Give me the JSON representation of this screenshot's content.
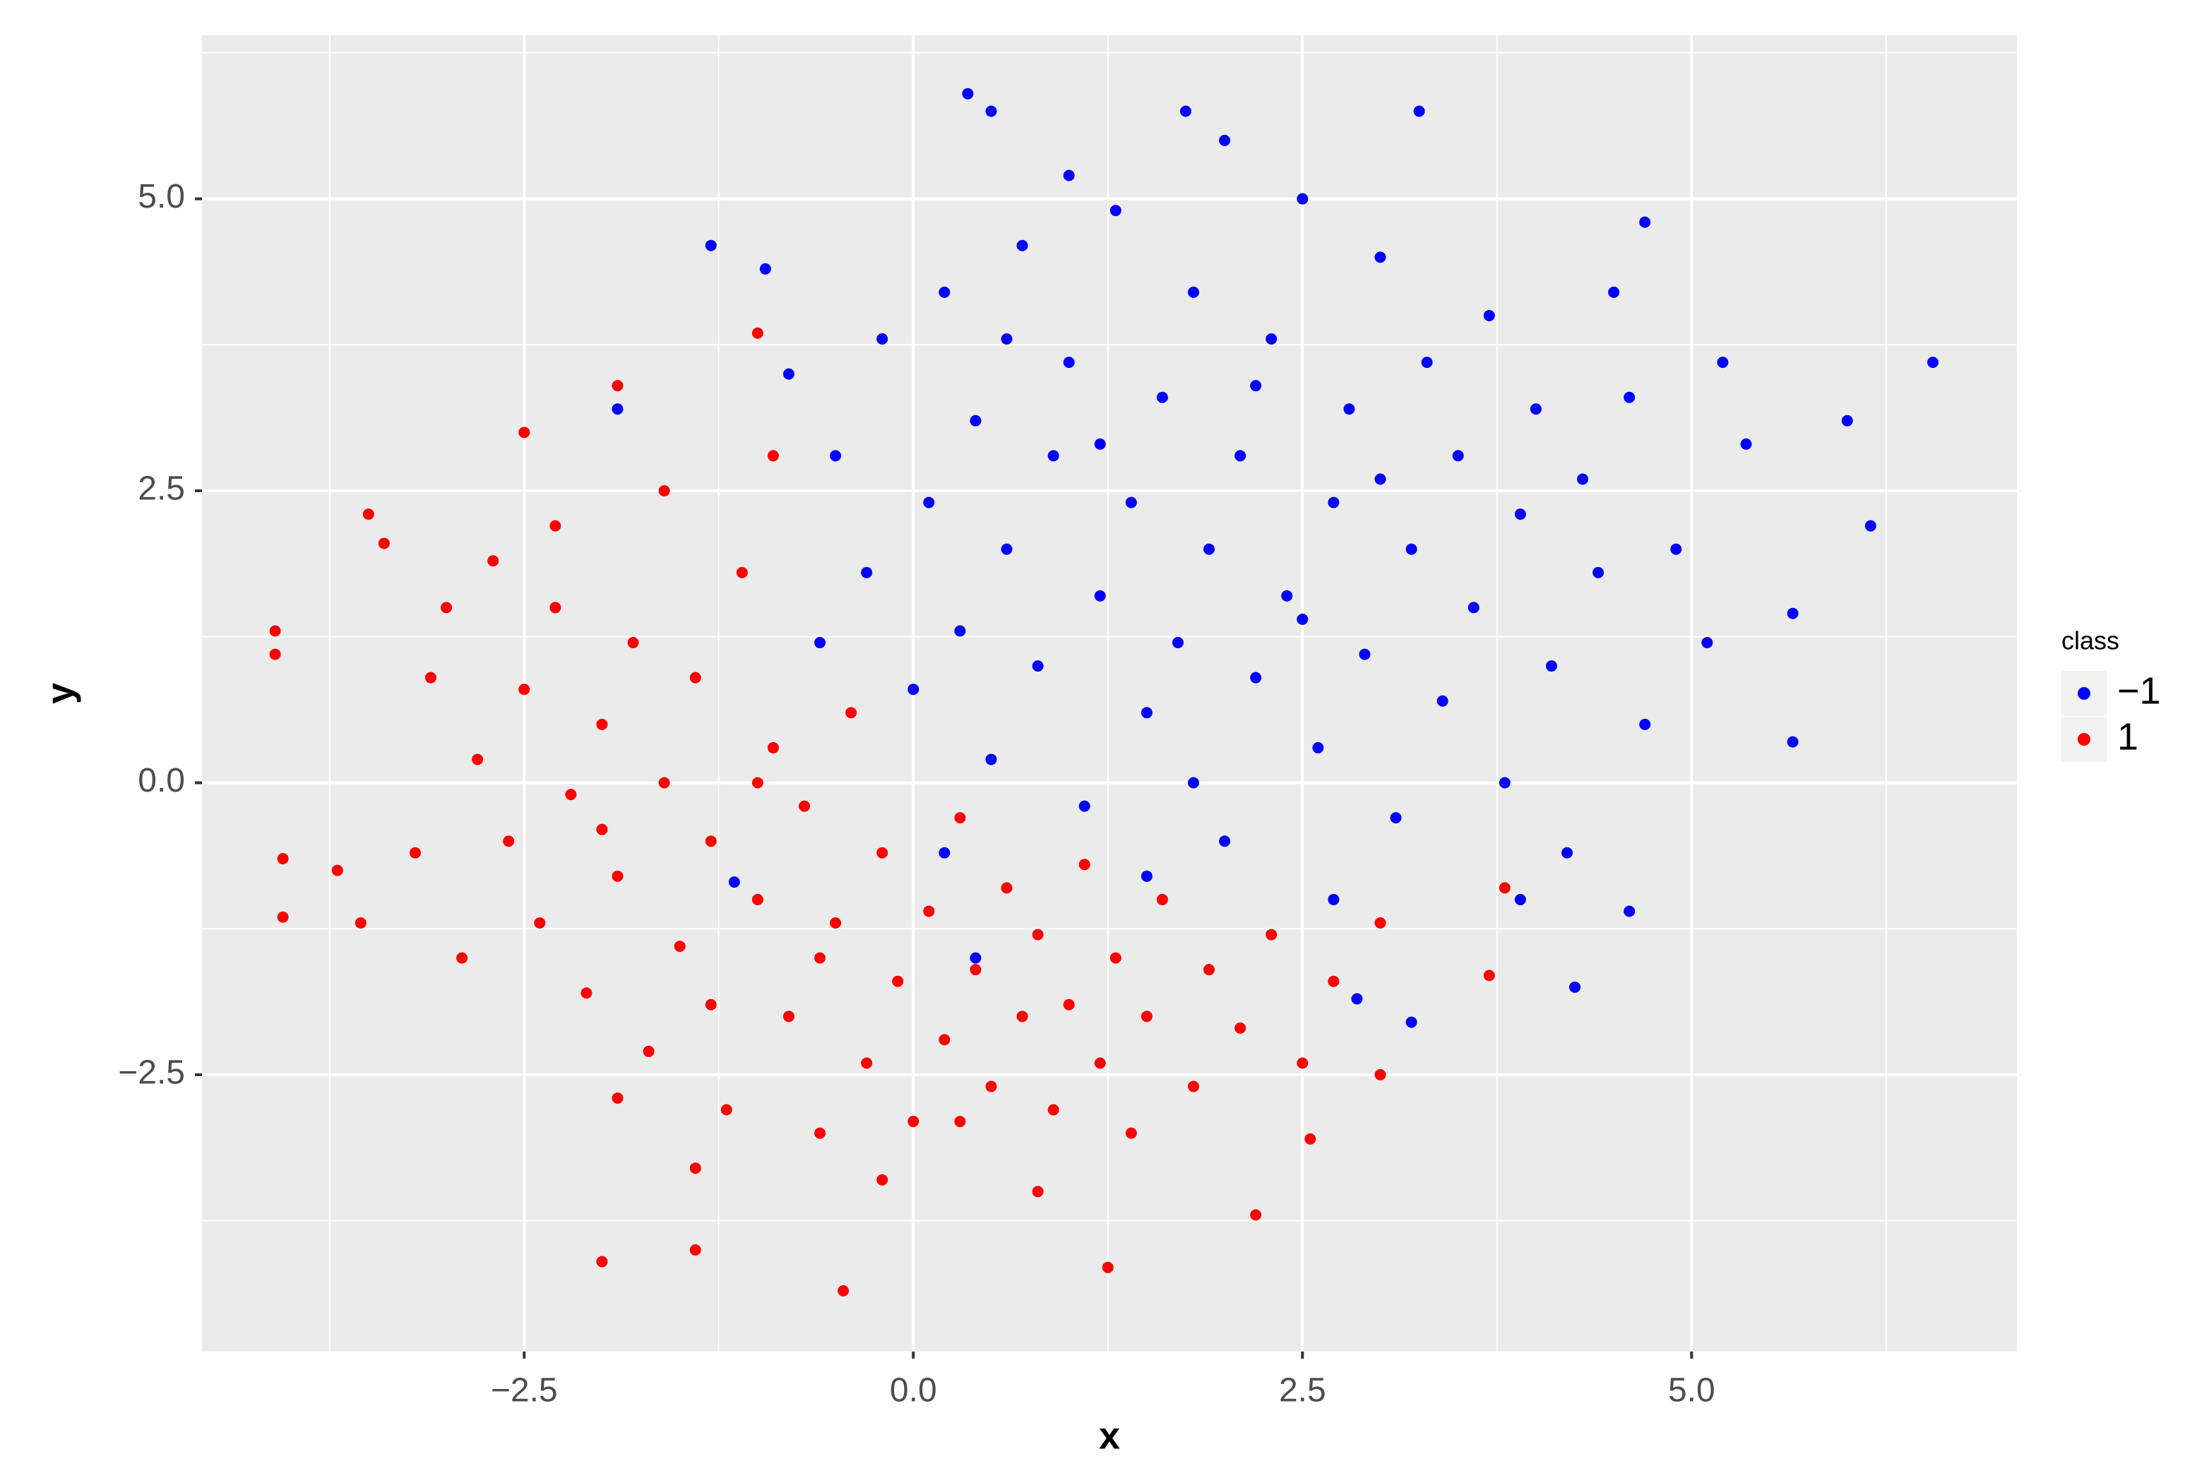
{
  "chart_data": {
    "type": "scatter",
    "x_label": "x",
    "y_label": "y",
    "legend_title": "class",
    "legend": "right",
    "grid": true,
    "xlim": [
      -4.57,
      7.09
    ],
    "ylim": [
      -4.87,
      6.4
    ],
    "xticks": [
      {
        "value": -2.5,
        "label": "−2.5"
      },
      {
        "value": 0,
        "label": "0.0"
      },
      2.5,
      {
        "value": 5,
        "label": "5.0"
      }
    ],
    "yticks": [
      {
        "value": -2.5,
        "label": "−2.5"
      },
      {
        "value": 0,
        "label": "0.0"
      },
      2.5,
      {
        "value": 5,
        "label": "5.0"
      }
    ],
    "series": [
      {
        "name": "1",
        "color": "#ff0000",
        "x": [
          -4.1,
          -4.1,
          -4.05,
          -4.05,
          -3.7,
          -3.55,
          -3.5,
          -3.4,
          -2.0,
          -0.45,
          1.25,
          -1.4,
          2.2,
          3.0,
          3.7,
          3.8,
          -1.9,
          -2.5,
          2.55,
          -1.0,
          -2.8,
          -2.6,
          -2.5,
          -2.4,
          -2.3,
          -2.2,
          -2.1,
          -2.0,
          -1.9,
          -1.8,
          -1.7,
          -1.6,
          -1.5,
          -1.4,
          -1.3,
          -1.2,
          -1.1,
          -1.0,
          -0.9,
          -0.8,
          -0.7,
          -0.6,
          -0.5,
          -0.4,
          -0.3,
          -0.2,
          -0.1,
          0.0,
          0.1,
          0.2,
          0.3,
          0.4,
          0.5,
          0.6,
          0.7,
          0.8,
          0.9,
          1.0,
          1.1,
          1.2,
          1.3,
          1.5,
          1.6,
          1.8,
          1.9,
          2.1,
          2.3,
          2.5,
          2.7,
          3.0,
          -2.9,
          -3.1,
          -2.7,
          -1.6,
          -0.9,
          -3.2,
          -1.9,
          -1.4,
          -0.2,
          0.8,
          -2.3,
          -1.3,
          -0.6,
          -2.0,
          -1.0,
          0.3,
          1.4,
          -3.0
        ],
        "values": [
          1.3,
          1.1,
          -1.15,
          -0.65,
          -0.75,
          -1.2,
          2.3,
          2.05,
          -4.1,
          -4.35,
          -4.15,
          -4.0,
          -3.7,
          -2.5,
          -1.65,
          -0.9,
          3.4,
          3.0,
          -3.05,
          3.85,
          0.2,
          -0.5,
          0.8,
          -1.2,
          1.5,
          -0.1,
          -1.8,
          0.5,
          -0.8,
          1.2,
          -2.3,
          0.0,
          -1.4,
          0.9,
          -0.5,
          -2.8,
          1.8,
          -1.0,
          0.3,
          -2.0,
          -0.2,
          -3.0,
          -1.2,
          0.6,
          -2.4,
          -0.6,
          -1.7,
          -2.9,
          -1.1,
          -2.2,
          -0.3,
          -1.6,
          -2.6,
          -0.9,
          -2.0,
          -1.3,
          -2.8,
          -1.9,
          -0.7,
          -2.4,
          -1.5,
          -2.0,
          -1.0,
          -2.6,
          -1.6,
          -2.1,
          -1.3,
          -2.4,
          -1.7,
          -1.2,
          -1.5,
          0.9,
          1.9,
          2.5,
          2.8,
          -0.6,
          -2.7,
          -3.3,
          -3.4,
          -3.5,
          2.2,
          -1.9,
          -1.5,
          -0.4,
          0.0,
          -2.9,
          -3.0,
          1.5
        ]
      },
      {
        "name": "−1",
        "color": "#0000ff",
        "x": [
          0.35,
          0.5,
          3.25,
          1.75,
          6.55,
          6.0,
          6.15,
          5.65,
          5.65,
          4.25,
          3.2,
          2.85,
          -1.3,
          -1.9,
          -0.95,
          4.7,
          5.35,
          4.6,
          -1.15,
          0.4,
          -0.8,
          -0.5,
          -0.3,
          -0.2,
          0.0,
          0.1,
          0.2,
          0.3,
          0.4,
          0.5,
          0.6,
          0.7,
          0.8,
          0.9,
          1.0,
          1.1,
          1.2,
          1.3,
          1.4,
          1.5,
          1.6,
          1.7,
          1.8,
          1.9,
          2.0,
          2.1,
          2.2,
          2.3,
          2.4,
          2.5,
          2.6,
          2.7,
          2.8,
          2.9,
          3.0,
          3.1,
          3.2,
          3.3,
          3.4,
          3.5,
          3.6,
          3.7,
          3.8,
          3.9,
          4.0,
          4.1,
          4.2,
          4.3,
          4.4,
          4.6,
          4.7,
          4.9,
          5.1,
          5.2,
          1.0,
          2.0,
          -0.6,
          0.2,
          1.5,
          2.7,
          3.9,
          4.5,
          1.8,
          2.5,
          1.2,
          3.0,
          2.2,
          0.6
        ],
        "values": [
          5.9,
          5.75,
          5.75,
          5.75,
          3.6,
          3.1,
          2.2,
          1.45,
          0.35,
          -1.75,
          -2.05,
          -1.85,
          4.6,
          3.2,
          4.4,
          4.8,
          2.9,
          -1.1,
          -0.85,
          -1.5,
          3.5,
          2.8,
          1.8,
          3.8,
          0.8,
          2.4,
          4.2,
          1.3,
          3.1,
          0.2,
          2.0,
          4.6,
          1.0,
          2.8,
          3.6,
          -0.2,
          1.6,
          4.9,
          2.4,
          0.6,
          3.3,
          1.2,
          4.2,
          2.0,
          -0.5,
          2.8,
          0.9,
          3.8,
          1.6,
          5.0,
          0.3,
          2.4,
          3.2,
          1.1,
          4.5,
          -0.3,
          2.0,
          3.6,
          0.7,
          2.8,
          1.5,
          4.0,
          0.0,
          2.3,
          3.2,
          1.0,
          -0.6,
          2.6,
          1.8,
          3.3,
          0.5,
          2.0,
          1.2,
          3.6,
          5.2,
          5.5,
          1.2,
          -0.6,
          -0.8,
          -1.0,
          -1.0,
          4.2,
          0.0,
          1.4,
          2.9,
          2.6,
          3.4,
          3.8
        ]
      }
    ]
  }
}
